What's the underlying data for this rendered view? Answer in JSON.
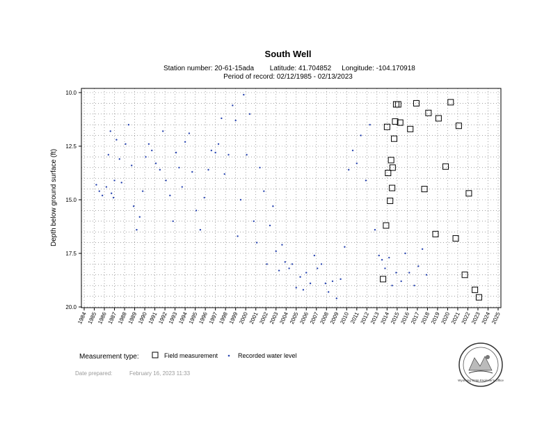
{
  "chart_data": {
    "type": "scatter",
    "title": "South Well",
    "station_label": "Station number: 20-61-15ada",
    "latitude_label": "Latitude: 41.704852",
    "longitude_label": "Longitude: -104.170918",
    "period_label": "Period of record: 02/12/1985 - 02/13/2023",
    "ylabel": "Depth below ground surface (ft)",
    "ylim": [
      10,
      20
    ],
    "yticks": [
      "10.0",
      "12.5",
      "15.0",
      "17.5",
      "20.0"
    ],
    "xlim": [
      1984,
      2025
    ],
    "xticks": [
      "1984",
      "1985",
      "1986",
      "1987",
      "1988",
      "1989",
      "1990",
      "1991",
      "1992",
      "1993",
      "1994",
      "1995",
      "1996",
      "1997",
      "1998",
      "1999",
      "2000",
      "2001",
      "2002",
      "2003",
      "2004",
      "2005",
      "2006",
      "2007",
      "2008",
      "2009",
      "2010",
      "2011",
      "2012",
      "2013",
      "2014",
      "2015",
      "2016",
      "2017",
      "2018",
      "2019",
      "2020",
      "2021",
      "2022",
      "2023",
      "2024",
      "2025"
    ],
    "series": [
      {
        "name": "Field measurement",
        "marker": "square",
        "color": "#000000",
        "x": [
          2013.6,
          2013.9,
          2014.0,
          2014.1,
          2014.3,
          2014.4,
          2014.5,
          2014.55,
          2014.7,
          2014.8,
          2014.9,
          2015.1,
          2015.3,
          2016.3,
          2016.9,
          2017.7,
          2018.1,
          2018.8,
          2019.1,
          2019.8,
          2020.3,
          2020.8,
          2021.1,
          2021.7,
          2022.1,
          2022.7,
          2023.1
        ],
        "y": [
          18.7,
          16.2,
          11.6,
          13.75,
          15.05,
          13.15,
          14.45,
          13.5,
          12.15,
          11.35,
          10.55,
          10.55,
          11.4,
          11.7,
          10.5,
          14.5,
          10.95,
          16.6,
          11.2,
          13.45,
          10.45,
          16.8,
          11.55,
          18.5,
          14.7,
          19.2,
          19.55
        ]
      },
      {
        "name": "Recorded water level",
        "marker": "dot",
        "color": "#2a46b0",
        "x": [
          1985.2,
          1985.5,
          1985.8,
          1986.2,
          1986.4,
          1986.6,
          1986.7,
          1986.9,
          1987.0,
          1987.2,
          1987.5,
          1987.7,
          1988.1,
          1988.4,
          1988.7,
          1988.9,
          1989.2,
          1989.5,
          1989.8,
          1990.1,
          1990.4,
          1990.7,
          1991.1,
          1991.5,
          1991.8,
          1992.1,
          1992.5,
          1992.8,
          1993.1,
          1993.4,
          1993.7,
          1994.0,
          1994.4,
          1994.7,
          1995.1,
          1995.5,
          1995.9,
          1996.3,
          1996.6,
          1997.0,
          1997.3,
          1997.6,
          1997.9,
          1998.3,
          1998.7,
          1999.0,
          1999.2,
          1999.5,
          1999.8,
          2000.1,
          2000.4,
          2000.8,
          2001.1,
          2001.4,
          2001.8,
          2002.1,
          2002.4,
          2002.7,
          2003.0,
          2003.3,
          2003.6,
          2003.9,
          2004.3,
          2004.6,
          2005.0,
          2005.4,
          2005.7,
          2006.0,
          2006.4,
          2006.8,
          2007.1,
          2007.5,
          2007.9,
          2008.2,
          2008.6,
          2009.0,
          2009.4,
          2009.8,
          2010.2,
          2010.6,
          2011.0,
          2011.4,
          2011.9,
          2012.3,
          2012.8,
          2013.2,
          2013.5,
          2013.8,
          2014.2,
          2014.5,
          2014.9,
          2015.4,
          2015.8,
          2016.2,
          2016.7,
          2017.1,
          2017.5,
          2017.9
        ],
        "y": [
          14.3,
          14.6,
          14.8,
          14.4,
          12.9,
          11.8,
          14.7,
          14.9,
          14.1,
          12.2,
          13.1,
          14.2,
          12.4,
          11.5,
          13.4,
          15.3,
          16.4,
          15.8,
          14.6,
          13.0,
          12.4,
          12.7,
          13.3,
          13.6,
          11.8,
          14.1,
          14.8,
          16.0,
          12.8,
          13.5,
          14.4,
          12.3,
          11.9,
          13.7,
          15.5,
          16.4,
          14.9,
          13.6,
          12.7,
          12.8,
          12.4,
          11.2,
          13.8,
          12.9,
          10.6,
          11.3,
          16.7,
          15.0,
          10.1,
          12.9,
          11.0,
          16.0,
          17.0,
          13.5,
          14.6,
          18.0,
          16.2,
          15.3,
          17.4,
          18.3,
          17.1,
          17.9,
          18.2,
          18.0,
          19.1,
          18.6,
          19.2,
          18.4,
          18.9,
          17.6,
          18.2,
          18.0,
          18.9,
          19.3,
          18.8,
          19.6,
          18.7,
          17.2,
          13.6,
          12.7,
          13.3,
          12.0,
          14.1,
          11.5,
          16.4,
          17.6,
          17.8,
          18.2,
          17.7,
          19.0,
          18.4,
          18.8,
          17.5,
          18.4,
          19.0,
          18.1,
          17.3,
          18.5
        ]
      }
    ],
    "legend": {
      "position": "bottom",
      "title": "Measurement type:",
      "entries": [
        "Field measurement",
        "Recorded water level"
      ]
    },
    "date_prepared_label": "Date prepared:",
    "date_prepared_value": "February 16, 2023 11:33",
    "logo_text": "Wyoming State Engineer's Office"
  }
}
